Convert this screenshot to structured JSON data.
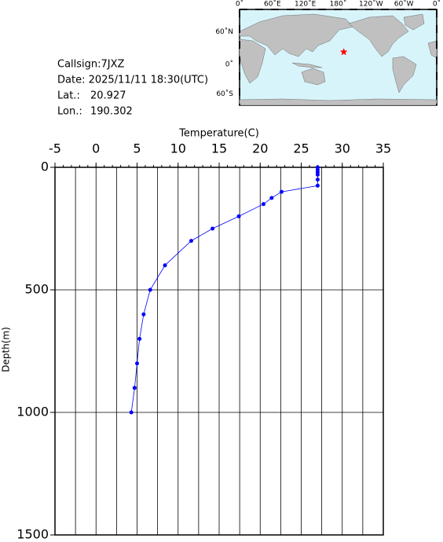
{
  "chart_data": {
    "type": "line",
    "x_label": "Temperature(C)",
    "y_label": "Depth(m)",
    "x": [
      27.0,
      27.0,
      27.0,
      27.0,
      27.0,
      27.0,
      22.6,
      21.4,
      20.4,
      17.4,
      14.2,
      11.6,
      8.4,
      6.6,
      5.8,
      5.3,
      5.0,
      4.7,
      4.3
    ],
    "y": [
      0,
      10,
      20,
      30,
      50,
      75,
      100,
      125,
      150,
      200,
      250,
      300,
      400,
      500,
      600,
      700,
      800,
      900,
      1000
    ],
    "color": "#0000ff",
    "xlim": [
      -5,
      35
    ],
    "xticks": [
      -5,
      0,
      5,
      10,
      15,
      20,
      25,
      30,
      35
    ],
    "ylim": [
      0,
      1500
    ],
    "yticks": [
      0,
      500,
      1000,
      1500
    ],
    "y_inverted": true,
    "grid": true
  },
  "station": {
    "callsign": "Callsign:7JXZ",
    "date": "Date:  2025/11/11 18:30(UTC)",
    "lat_label": "Lat.:",
    "lat": 20.927,
    "lon_label": "Lon.:",
    "lon": 190.302
  },
  "map": {
    "lon_labels": [
      "0˚",
      "60˚E",
      "120˚E",
      "180˚",
      "120˚W",
      "60˚W",
      "0˚"
    ],
    "lat_labels": [
      "60˚N",
      "0˚",
      "60˚S"
    ]
  }
}
